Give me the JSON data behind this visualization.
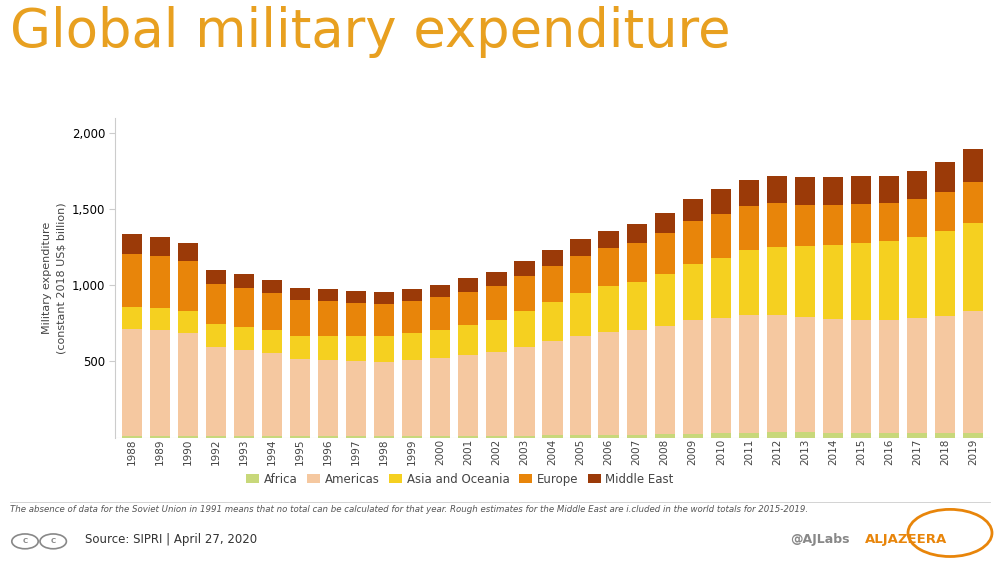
{
  "title": "Global military expenditure",
  "ylabel": "Military expenditure\n(constant 2018 US$ billion)",
  "ylim": [
    0,
    2100
  ],
  "yticks": [
    500,
    1000,
    1500,
    2000
  ],
  "bg_color": "#ffffff",
  "title_color": "#e8a020",
  "title_fontsize": 38,
  "years": [
    1988,
    1989,
    1990,
    1992,
    1993,
    1994,
    1995,
    1996,
    1997,
    1998,
    1999,
    2000,
    2001,
    2002,
    2003,
    2004,
    2005,
    2006,
    2007,
    2008,
    2009,
    2010,
    2011,
    2012,
    2013,
    2014,
    2015,
    2016,
    2017,
    2018,
    2019
  ],
  "Africa": [
    10,
    10,
    10,
    10,
    10,
    10,
    10,
    10,
    10,
    10,
    10,
    10,
    11,
    12,
    13,
    14,
    16,
    18,
    20,
    23,
    26,
    30,
    33,
    35,
    35,
    33,
    32,
    31,
    31,
    32,
    33
  ],
  "Americas": [
    700,
    695,
    675,
    588,
    565,
    543,
    503,
    498,
    491,
    487,
    499,
    510,
    533,
    551,
    585,
    618,
    654,
    676,
    685,
    707,
    744,
    754,
    773,
    769,
    754,
    745,
    743,
    744,
    754,
    768,
    797
  ],
  "Asia_Oceania": [
    150,
    148,
    146,
    145,
    148,
    152,
    155,
    159,
    163,
    169,
    175,
    185,
    195,
    209,
    231,
    257,
    278,
    301,
    320,
    345,
    368,
    395,
    424,
    450,
    466,
    487,
    504,
    519,
    535,
    555,
    578
  ],
  "Europe": [
    345,
    338,
    330,
    265,
    258,
    247,
    237,
    228,
    222,
    213,
    211,
    215,
    220,
    224,
    232,
    238,
    245,
    249,
    253,
    268,
    284,
    289,
    291,
    285,
    273,
    265,
    253,
    244,
    247,
    258,
    272
  ],
  "Middle_East": [
    130,
    125,
    118,
    95,
    90,
    85,
    80,
    78,
    78,
    78,
    80,
    85,
    87,
    92,
    100,
    108,
    108,
    113,
    122,
    135,
    148,
    165,
    168,
    181,
    185,
    182,
    183,
    178,
    183,
    198,
    215
  ],
  "colors": {
    "Africa": "#c8d87a",
    "Americas": "#f5c8a0",
    "Asia_Oceania": "#f5d020",
    "Europe": "#e8850a",
    "Middle_East": "#9b3a08"
  },
  "legend_labels": [
    "Africa",
    "Americas",
    "Asia and Oceania",
    "Europe",
    "Middle East"
  ],
  "footnote": "The absence of data for the Soviet Union in 1991 means that no total can be calculated for that year. Rough estimates for the Middle East are i.cluded in the world totals for 2015-2019.",
  "source_text": "Source: SIPRI | April 27, 2020",
  "ajlabs_text": "@AJLabs",
  "aljazeera_text": "ALJAZEERA"
}
